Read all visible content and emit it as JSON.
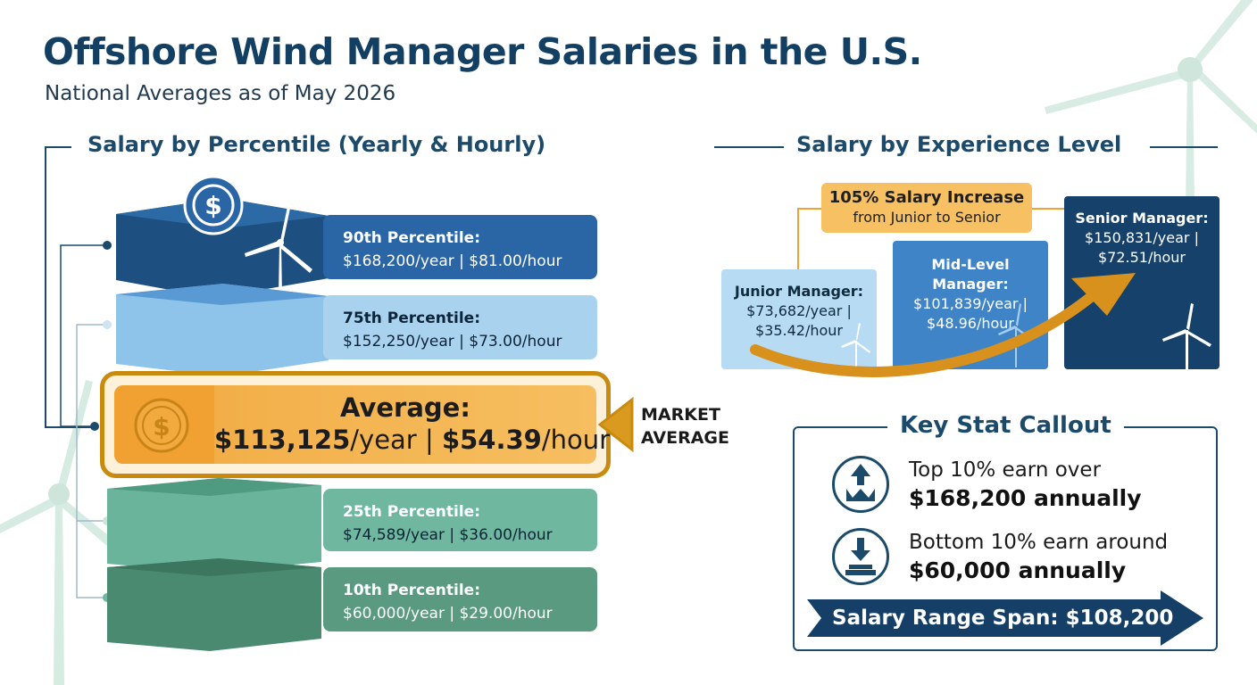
{
  "title": "Offshore Wind Manager Salaries in the U.S.",
  "subtitle": "National Averages as of May 2026",
  "percentile_section": {
    "heading": "Salary by Percentile (Yearly & Hourly)",
    "items": [
      {
        "label": "90th Percentile:",
        "value": "$168,200/year | $81.00/hour"
      },
      {
        "label": "75th Percentile:",
        "value": "$152,250/year | $73.00/hour"
      },
      {
        "label": "25th Percentile:",
        "value": "$74,589/year | $36.00/hour"
      },
      {
        "label": "10th Percentile:",
        "value": "$60,000/year | $29.00/hour"
      }
    ],
    "average": {
      "label": "Average:",
      "yearly": "$113,125",
      "yearly_unit": "/year | ",
      "hourly": "$54.39",
      "hourly_unit": "/hour"
    },
    "market_label_1": "MARKET",
    "market_label_2": "AVERAGE"
  },
  "experience_section": {
    "heading": "Salary by Experience Level",
    "increase_title": "105% Salary Increase",
    "increase_sub": "from Junior to Senior",
    "levels": [
      {
        "title": "Junior Manager:",
        "yearly": "$73,682/year |",
        "hourly": "$35.42/hour"
      },
      {
        "title": "Mid-Level Manager:",
        "yearly": "$101,839/year |",
        "hourly": "$48.96/hour"
      },
      {
        "title": "Senior Manager:",
        "yearly": "$150,831/year |",
        "hourly": "$72.51/hour"
      }
    ]
  },
  "key_stat": {
    "heading": "Key Stat Callout",
    "top_line1": "Top 10% earn over",
    "top_line2": "$168,200 annually",
    "bottom_line1": "Bottom 10% earn around",
    "bottom_line2": "$60,000 annually",
    "range_span": "Salary Range Span: $108,200"
  },
  "icons": [
    "dollar-coin-icon",
    "wind-turbine-icon",
    "crown-arrow-up-icon",
    "arrow-down-tray-icon"
  ],
  "colors": {
    "navy": "#1b4a6b",
    "blue_dark": "#265f9b",
    "blue_light": "#a9d2ef",
    "orange": "#f3b14c",
    "green_mid": "#6fb79e",
    "green_dark": "#4f8d76"
  }
}
